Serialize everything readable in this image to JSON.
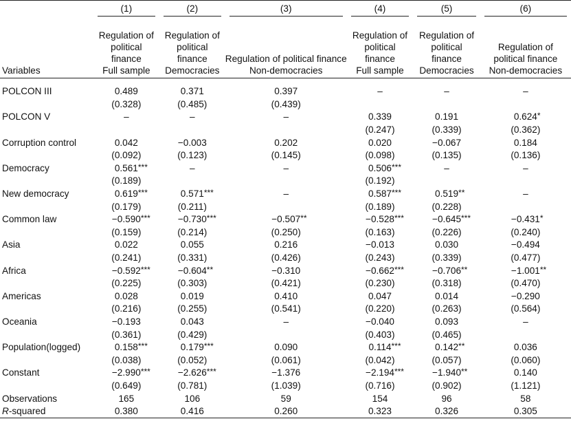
{
  "columns": [
    {
      "num": "(1)",
      "lines": [
        "Regulation of",
        "political",
        "finance",
        "Full sample"
      ]
    },
    {
      "num": "(2)",
      "lines": [
        "Regulation of",
        "political",
        "finance",
        "Democracies"
      ]
    },
    {
      "num": "(3)",
      "lines": [
        "Regulation of political finance",
        "Non-democracies"
      ]
    },
    {
      "num": "(4)",
      "lines": [
        "Regulation of",
        "political",
        "finance",
        "Full sample"
      ]
    },
    {
      "num": "(5)",
      "lines": [
        "Regulation of",
        "political",
        "finance",
        "Democracies"
      ]
    },
    {
      "num": "(6)",
      "lines": [
        "Regulation of",
        "political finance",
        "Non-democracies"
      ]
    }
  ],
  "variables_label": "Variables",
  "rows": [
    {
      "label": "POLCON III",
      "coef": [
        [
          "0.489",
          ""
        ],
        [
          "0.371",
          ""
        ],
        [
          "0.397",
          ""
        ],
        [
          "–",
          ""
        ],
        [
          "–",
          ""
        ],
        [
          "–",
          ""
        ]
      ],
      "se": [
        "(0.328)",
        "(0.485)",
        "(0.439)",
        "",
        "",
        ""
      ]
    },
    {
      "label": "POLCON V",
      "coef": [
        [
          "–",
          ""
        ],
        [
          "–",
          ""
        ],
        [
          "–",
          ""
        ],
        [
          "0.339",
          ""
        ],
        [
          "0.191",
          ""
        ],
        [
          "0.624",
          "*"
        ]
      ],
      "se": [
        "",
        "",
        "",
        "(0.247)",
        "(0.339)",
        "(0.362)"
      ]
    },
    {
      "label": "Corruption control",
      "coef": [
        [
          "0.042",
          ""
        ],
        [
          "−0.003",
          ""
        ],
        [
          "0.202",
          ""
        ],
        [
          "0.020",
          ""
        ],
        [
          "−0.067",
          ""
        ],
        [
          "0.184",
          ""
        ]
      ],
      "se": [
        "(0.092)",
        "(0.123)",
        "(0.145)",
        "(0.098)",
        "(0.135)",
        "(0.136)"
      ]
    },
    {
      "label": "Democracy",
      "coef": [
        [
          "0.561",
          "***"
        ],
        [
          "–",
          ""
        ],
        [
          "–",
          ""
        ],
        [
          "0.506",
          "***"
        ],
        [
          "–",
          ""
        ],
        [
          "–",
          ""
        ]
      ],
      "se": [
        "(0.189)",
        "",
        "",
        "(0.192)",
        "",
        ""
      ]
    },
    {
      "label": "New democracy",
      "coef": [
        [
          "0.619",
          "***"
        ],
        [
          "0.571",
          "***"
        ],
        [
          "–",
          ""
        ],
        [
          "0.587",
          "***"
        ],
        [
          "0.519",
          "**"
        ],
        [
          "–",
          ""
        ]
      ],
      "se": [
        "(0.179)",
        "(0.211)",
        "",
        "(0.189)",
        "(0.228)",
        ""
      ]
    },
    {
      "label": "Common law",
      "coef": [
        [
          "−0.590",
          "***"
        ],
        [
          "−0.730",
          "***"
        ],
        [
          "−0.507",
          "**"
        ],
        [
          "−0.528",
          "***"
        ],
        [
          "−0.645",
          "***"
        ],
        [
          "−0.431",
          "*"
        ]
      ],
      "se": [
        "(0.159)",
        "(0.214)",
        "(0.250)",
        "(0.163)",
        "(0.226)",
        "(0.240)"
      ]
    },
    {
      "label": "Asia",
      "coef": [
        [
          "0.022",
          ""
        ],
        [
          "0.055",
          ""
        ],
        [
          "0.216",
          ""
        ],
        [
          "−0.013",
          ""
        ],
        [
          "0.030",
          ""
        ],
        [
          "−0.494",
          ""
        ]
      ],
      "se": [
        "(0.241)",
        "(0.331)",
        "(0.426)",
        "(0.243)",
        "(0.339)",
        "(0.477)"
      ]
    },
    {
      "label": "Africa",
      "coef": [
        [
          "−0.592",
          "***"
        ],
        [
          "−0.604",
          "**"
        ],
        [
          "−0.310",
          ""
        ],
        [
          "−0.662",
          "***"
        ],
        [
          "−0.706",
          "**"
        ],
        [
          "−1.001",
          "**"
        ]
      ],
      "se": [
        "(0.225)",
        "(0.303)",
        "(0.421)",
        "(0.230)",
        "(0.318)",
        "(0.470)"
      ]
    },
    {
      "label": "Americas",
      "coef": [
        [
          "0.028",
          ""
        ],
        [
          "0.019",
          ""
        ],
        [
          "0.410",
          ""
        ],
        [
          "0.047",
          ""
        ],
        [
          "0.014",
          ""
        ],
        [
          "−0.290",
          ""
        ]
      ],
      "se": [
        "(0.216)",
        "(0.255)",
        "(0.541)",
        "(0.220)",
        "(0.263)",
        "(0.564)"
      ]
    },
    {
      "label": "Oceania",
      "coef": [
        [
          "−0.193",
          ""
        ],
        [
          "0.043",
          ""
        ],
        [
          "–",
          ""
        ],
        [
          "−0.040",
          ""
        ],
        [
          "0.093",
          ""
        ],
        [
          "–",
          ""
        ]
      ],
      "se": [
        "(0.361)",
        "(0.429)",
        "",
        "(0.403)",
        "(0.465)",
        ""
      ]
    },
    {
      "label": "Population(logged)",
      "coef": [
        [
          "0.158",
          "***"
        ],
        [
          "0.179",
          "***"
        ],
        [
          "0.090",
          ""
        ],
        [
          "0.114",
          "***"
        ],
        [
          "0.142",
          "**"
        ],
        [
          "0.036",
          ""
        ]
      ],
      "se": [
        "(0.038)",
        "(0.052)",
        "(0.061)",
        "(0.042)",
        "(0.057)",
        "(0.060)"
      ]
    },
    {
      "label": "Constant",
      "coef": [
        [
          "−2.990",
          "***"
        ],
        [
          "−2.626",
          "***"
        ],
        [
          "−1.376",
          ""
        ],
        [
          "−2.194",
          "***"
        ],
        [
          "−1.940",
          "**"
        ],
        [
          "0.140",
          ""
        ]
      ],
      "se": [
        "(0.649)",
        "(0.781)",
        "(1.039)",
        "(0.716)",
        "(0.902)",
        "(1.121)"
      ]
    }
  ],
  "observations": {
    "label": "Observations",
    "values": [
      "165",
      "106",
      "59",
      "154",
      "96",
      "58"
    ]
  },
  "rsquared": {
    "label_italic": "R",
    "label_rest": "-squared",
    "values": [
      "0.380",
      "0.416",
      "0.260",
      "0.323",
      "0.326",
      "0.305"
    ]
  }
}
